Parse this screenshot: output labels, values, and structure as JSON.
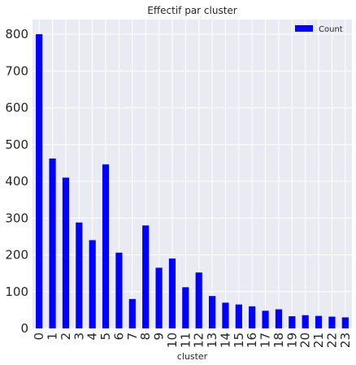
{
  "chart_data": {
    "type": "bar",
    "title": "Effectif par cluster",
    "xlabel": "cluster",
    "ylabel": "",
    "categories": [
      "0",
      "1",
      "2",
      "3",
      "4",
      "5",
      "6",
      "7",
      "8",
      "9",
      "10",
      "11",
      "12",
      "13",
      "14",
      "15",
      "16",
      "17",
      "18",
      "19",
      "20",
      "21",
      "22",
      "23"
    ],
    "series": [
      {
        "name": "Count",
        "color": "#0000ff",
        "values": [
          800,
          462,
          410,
          288,
          240,
          446,
          206,
          80,
          280,
          165,
          190,
          112,
          152,
          88,
          70,
          65,
          60,
          48,
          52,
          33,
          36,
          34,
          32,
          30
        ]
      }
    ],
    "yticks": [
      0,
      100,
      200,
      300,
      400,
      500,
      600,
      700,
      800
    ],
    "ylim": [
      0,
      840
    ],
    "grid": true,
    "legend_position": "top-right",
    "background_color": "#eaeaf2",
    "grid_color": "#ffffff"
  }
}
